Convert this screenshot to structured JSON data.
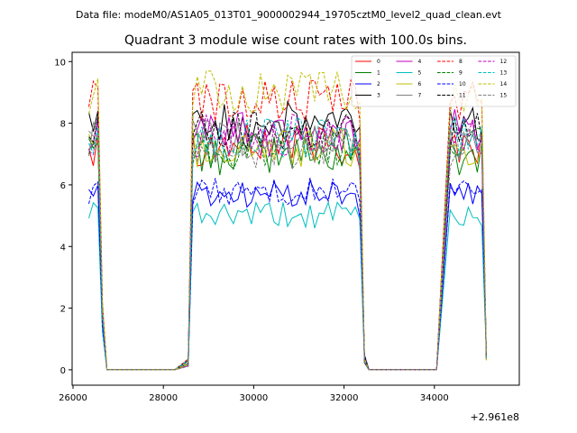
{
  "chart_data": {
    "type": "line",
    "suptitle": "Data file: modeM0/AS1A05_013T01_9000002944_19705cztM0_level2_quad_clean.evt",
    "title": "Quadrant 3 module wise count rates with 100.0s bins.",
    "xlabel": "",
    "ylabel": "",
    "x_offset_label": "+2.961e8",
    "xlim": [
      25980,
      35880
    ],
    "ylim": [
      -0.5,
      10.3
    ],
    "x_ticks": [
      26000,
      28000,
      30000,
      32000,
      34000
    ],
    "x_tick_labels": [
      "26000",
      "28000",
      "30000",
      "32000",
      "34000"
    ],
    "y_ticks": [
      0,
      2,
      4,
      6,
      8,
      10
    ],
    "y_tick_labels": [
      "0",
      "2",
      "4",
      "6",
      "8",
      "10"
    ],
    "grid": false,
    "legend_position": "top-right",
    "legend_columns": 4,
    "segments": [
      {
        "x_start": 26350,
        "x_end": 26650,
        "profile": "early"
      },
      {
        "x_start": 28550,
        "x_end": 32450,
        "profile": "middle"
      },
      {
        "x_start": 34350,
        "x_end": 35150,
        "profile": "late"
      }
    ],
    "gap_value": 0,
    "series": [
      {
        "name": "0",
        "color": "#ff0000",
        "dash": "solid",
        "mean": 7.3
      },
      {
        "name": "1",
        "color": "#008000",
        "dash": "solid",
        "mean": 7.0
      },
      {
        "name": "2",
        "color": "#0000ff",
        "dash": "solid",
        "mean": 5.7
      },
      {
        "name": "3",
        "color": "#000000",
        "dash": "solid",
        "mean": 8.0
      },
      {
        "name": "4",
        "color": "#bf00bf",
        "dash": "solid",
        "mean": 7.8
      },
      {
        "name": "5",
        "color": "#00bfbf",
        "dash": "solid",
        "mean": 5.0
      },
      {
        "name": "6",
        "color": "#bfbf00",
        "dash": "solid",
        "mean": 7.2
      },
      {
        "name": "7",
        "color": "#808080",
        "dash": "solid",
        "mean": 7.4
      },
      {
        "name": "8",
        "color": "#ff0000",
        "dash": "dashed",
        "mean": 8.7
      },
      {
        "name": "9",
        "color": "#008000",
        "dash": "dashed",
        "mean": 7.2
      },
      {
        "name": "10",
        "color": "#0000ff",
        "dash": "dashed",
        "mean": 5.8
      },
      {
        "name": "11",
        "color": "#000000",
        "dash": "dashed",
        "mean": 7.8
      },
      {
        "name": "12",
        "color": "#bf00bf",
        "dash": "dashed",
        "mean": 7.6
      },
      {
        "name": "13",
        "color": "#00bfbf",
        "dash": "dashed",
        "mean": 7.5
      },
      {
        "name": "14",
        "color": "#bfbf00",
        "dash": "dashed",
        "mean": 9.0
      },
      {
        "name": "15",
        "color": "#808080",
        "dash": "dashed",
        "mean": 7.2
      }
    ]
  }
}
